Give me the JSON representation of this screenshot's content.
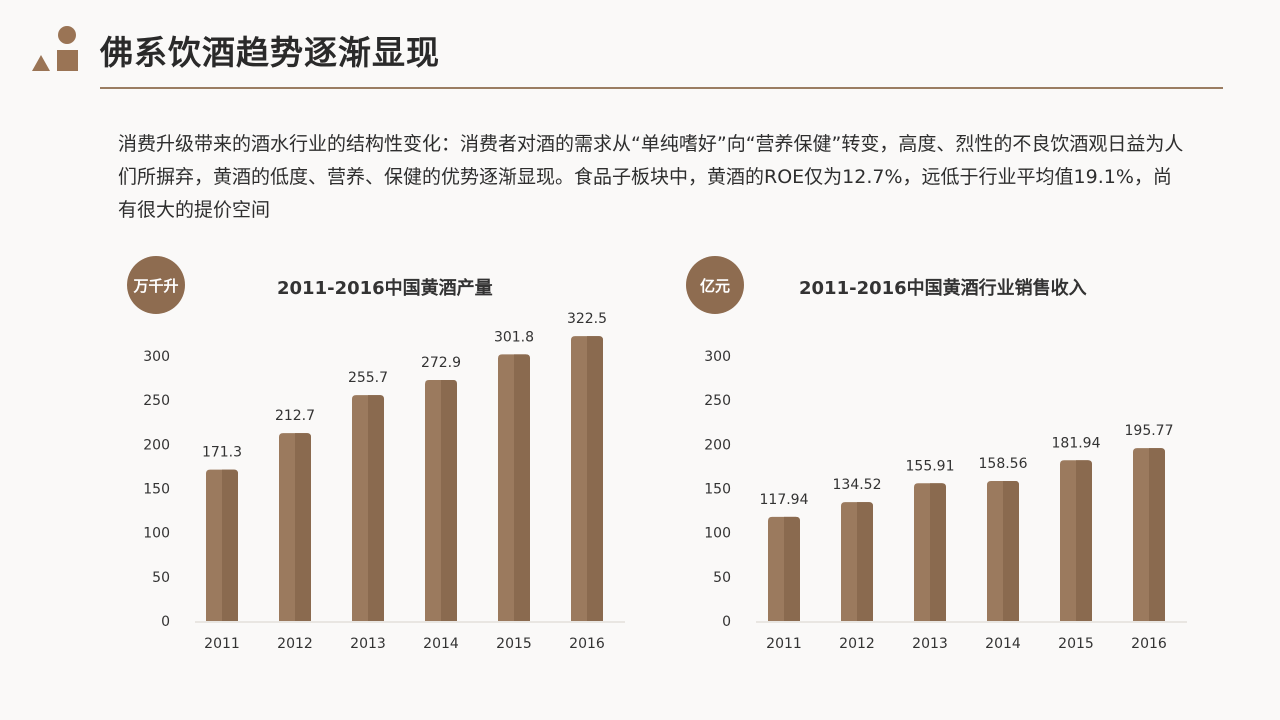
{
  "header": {
    "title": "佛系饮酒趋势逐渐显现"
  },
  "body_text": "消费升级带来的酒水行业的结构性变化：消费者对酒的需求从“单纯嗜好”向“营养保健”转变，高度、烈性的不良饮酒观日益为人们所摒弃，黄酒的低度、营养、保健的优势逐渐显现。食品子板块中，黄酒的ROE仅为12.7%，远低于行业平均值19.1%，尚有很大的提价空间",
  "colors": {
    "accent": "#8e6c50",
    "bar_light": "#9b7a5e",
    "bar_dark": "#8a6a4f",
    "rule": "#9a7d62"
  },
  "chart_data": [
    {
      "type": "bar",
      "title": "2011-2016中国黄酒产量",
      "unit_badge": "万千升",
      "categories": [
        "2011",
        "2012",
        "2013",
        "2014",
        "2015",
        "2016"
      ],
      "values": [
        171.3,
        212.7,
        255.7,
        272.9,
        301.8,
        322.5
      ],
      "data_labels": [
        "171.3",
        "212.7",
        "255.7",
        "272.9",
        "301.8",
        "322.5"
      ],
      "yticks": [
        "0",
        "50",
        "100",
        "150",
        "200",
        "250",
        "300"
      ],
      "ylim": [
        0,
        300
      ],
      "grid": false
    },
    {
      "type": "bar",
      "title": "2011-2016中国黄酒行业销售收入",
      "unit_badge": "亿元",
      "categories": [
        "2011",
        "2012",
        "2013",
        "2014",
        "2015",
        "2016"
      ],
      "values": [
        117.94,
        134.52,
        155.91,
        158.56,
        181.94,
        195.77
      ],
      "data_labels": [
        "117.94",
        "134.52",
        "155.91",
        "158.56",
        "181.94",
        "195.77"
      ],
      "yticks": [
        "0",
        "50",
        "100",
        "150",
        "200",
        "250",
        "300"
      ],
      "ylim": [
        0,
        300
      ],
      "grid": false
    }
  ]
}
